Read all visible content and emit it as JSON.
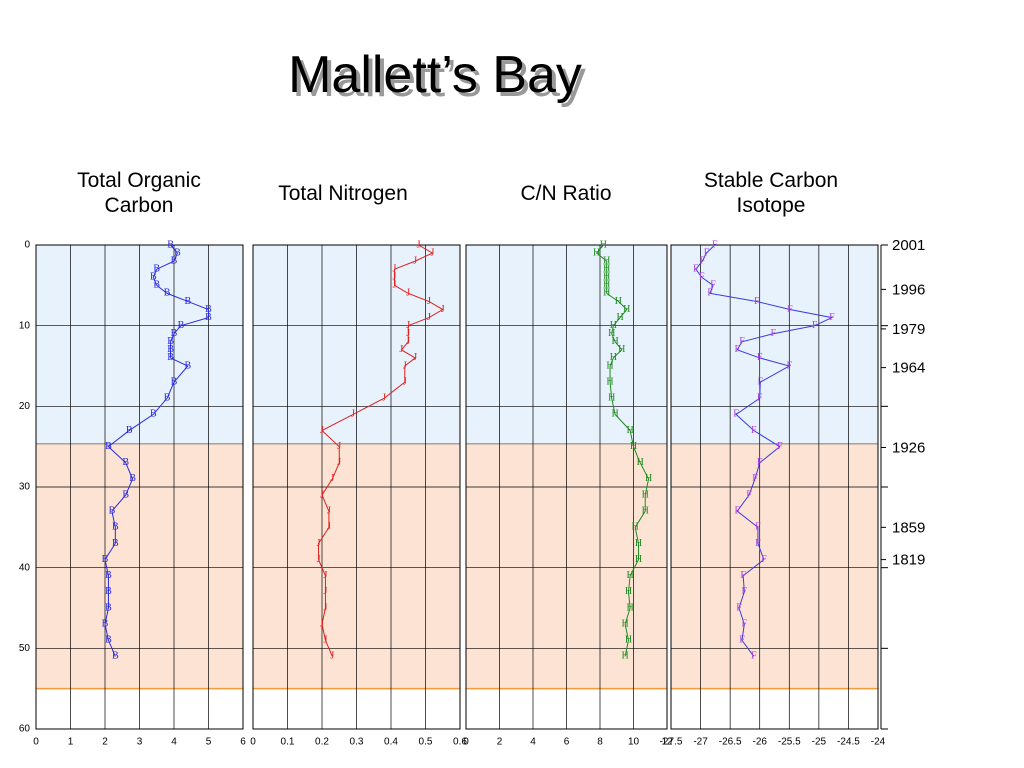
{
  "title": "Mallett’s Bay",
  "depth": {
    "ylim": [
      0,
      60
    ],
    "yticks": [
      0,
      10,
      20,
      30,
      40,
      50,
      60
    ],
    "values": [
      0,
      1,
      2,
      3,
      4,
      5,
      6,
      7,
      8,
      9,
      10,
      11,
      12,
      13,
      14,
      15,
      17,
      19,
      21,
      23,
      25,
      27,
      29,
      31,
      33,
      35,
      37,
      39,
      41,
      43,
      45,
      47,
      49,
      51
    ]
  },
  "zones": [
    {
      "from": 0,
      "to": 24.7,
      "color": "#e8f2fc",
      "edge": "#555555"
    },
    {
      "from": 24.7,
      "to": 55,
      "color": "#fde3d3",
      "edge": "#f59a3a"
    }
  ],
  "years": [
    {
      "label": "2001",
      "depth": 0
    },
    {
      "label": "1996",
      "depth": 5.5
    },
    {
      "label": "1979",
      "depth": 10.4
    },
    {
      "label": "1964",
      "depth": 15.2
    },
    {
      "label": "1926",
      "depth": 25.1
    },
    {
      "label": "1859",
      "depth": 35
    },
    {
      "label": "1819",
      "depth": 39
    }
  ],
  "chart_data": [
    {
      "type": "line",
      "title": "Total Organic Carbon",
      "xlim": [
        0,
        6
      ],
      "xticks": [
        0,
        1,
        2,
        3,
        4,
        5,
        6
      ],
      "marker": "B",
      "color": "#2a2adf",
      "values": [
        3.9,
        4.1,
        4.0,
        3.5,
        3.4,
        3.5,
        3.8,
        4.4,
        5.0,
        5.0,
        4.2,
        4.0,
        3.9,
        3.9,
        3.9,
        4.4,
        4.0,
        3.8,
        3.4,
        2.7,
        2.1,
        2.6,
        2.8,
        2.6,
        2.2,
        2.3,
        2.3,
        2.0,
        2.1,
        2.1,
        2.1,
        2.0,
        2.1,
        2.3
      ]
    },
    {
      "type": "line",
      "title": "Total Nitrogen",
      "xlim": [
        0,
        0.6
      ],
      "xticks": [
        0,
        0.1,
        0.2,
        0.3,
        0.4,
        0.5,
        0.6
      ],
      "marker": "J",
      "color": "#e02020",
      "values": [
        0.48,
        0.52,
        0.47,
        0.41,
        0.41,
        0.41,
        0.45,
        0.51,
        0.55,
        0.51,
        0.45,
        0.45,
        0.45,
        0.43,
        0.47,
        0.44,
        0.44,
        0.38,
        0.29,
        0.2,
        0.25,
        0.25,
        0.23,
        0.2,
        0.22,
        0.22,
        0.19,
        0.19,
        0.21,
        0.21,
        0.21,
        0.2,
        0.21,
        0.23
      ]
    },
    {
      "type": "line",
      "title": "C/N Ratio",
      "xlim": [
        0,
        12
      ],
      "xticks": [
        0,
        2,
        4,
        6,
        8,
        10,
        12
      ],
      "marker": "H",
      "color": "#1e8a1e",
      "values": [
        8.2,
        7.8,
        8.4,
        8.4,
        8.4,
        8.4,
        8.4,
        9.1,
        9.6,
        9.2,
        8.8,
        8.7,
        8.9,
        9.3,
        8.8,
        8.6,
        8.6,
        8.7,
        8.9,
        9.8,
        10.0,
        10.4,
        10.9,
        10.7,
        10.7,
        10.1,
        10.3,
        10.3,
        9.8,
        9.7,
        9.8,
        9.5,
        9.7,
        9.5
      ]
    },
    {
      "type": "line",
      "title": "Stable Carbon Isotope",
      "xlim": [
        -27.5,
        -24
      ],
      "xticks": [
        -27.5,
        -27,
        -26.5,
        -26,
        -25.5,
        -25,
        -24.5,
        -24
      ],
      "marker": "F",
      "color": "#3a3ae0",
      "marker_color": "#b040e0",
      "values": [
        -26.76,
        -26.9,
        -26.97,
        -27.08,
        -26.98,
        -26.79,
        -26.84,
        -26.05,
        -25.49,
        -24.78,
        -25.07,
        -25.77,
        -26.3,
        -26.38,
        -26.0,
        -25.5,
        -25.99,
        -26.0,
        -26.4,
        -26.1,
        -25.66,
        -26.0,
        -26.08,
        -26.18,
        -26.38,
        -26.03,
        -26.03,
        -25.93,
        -26.28,
        -26.26,
        -26.35,
        -26.26,
        -26.3,
        -26.1
      ]
    }
  ]
}
